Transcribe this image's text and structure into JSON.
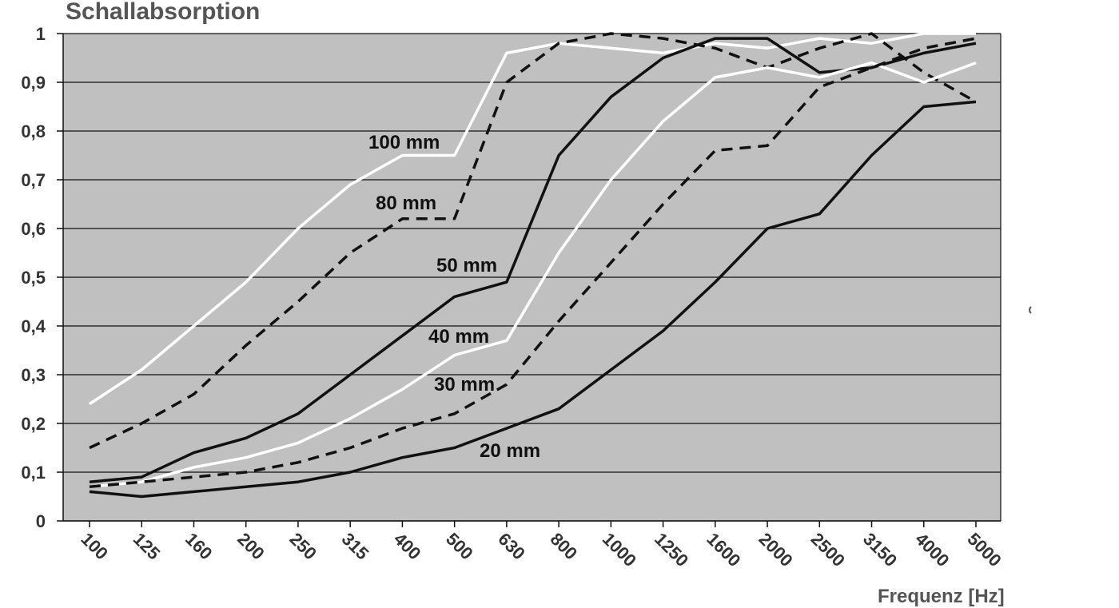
{
  "chart_data": {
    "type": "line",
    "title": "Schallabsorption",
    "xlabel": "Frequenz [Hz]",
    "ylabel": "",
    "ylim": [
      0,
      1
    ],
    "yticks": [
      "0",
      "0,1",
      "0,2",
      "0,3",
      "0,4",
      "0,5",
      "0,6",
      "0,7",
      "0,8",
      "0,9",
      "1"
    ],
    "categories": [
      "100",
      "125",
      "160",
      "200",
      "250",
      "315",
      "400",
      "500",
      "630",
      "800",
      "1000",
      "1250",
      "1600",
      "2000",
      "2500",
      "3150",
      "4000",
      "5000"
    ],
    "grid": true,
    "plot_background": "#c0c0c0",
    "series": [
      {
        "name": "100 mm",
        "color": "#ffffff",
        "dash": false,
        "values": [
          0.24,
          0.31,
          0.4,
          0.49,
          0.6,
          0.69,
          0.75,
          0.75,
          0.96,
          0.98,
          0.97,
          0.96,
          0.98,
          0.97,
          0.99,
          0.98,
          1.0,
          1.0
        ]
      },
      {
        "name": "80 mm",
        "color": "#111111",
        "dash": true,
        "values": [
          0.15,
          0.2,
          0.26,
          0.36,
          0.45,
          0.55,
          0.62,
          0.62,
          0.9,
          0.98,
          1.0,
          0.99,
          0.97,
          0.93,
          0.97,
          1.0,
          0.92,
          0.86
        ]
      },
      {
        "name": "50 mm",
        "color": "#111111",
        "dash": false,
        "values": [
          0.08,
          0.09,
          0.14,
          0.17,
          0.22,
          0.3,
          0.38,
          0.46,
          0.49,
          0.75,
          0.87,
          0.95,
          0.99,
          0.99,
          0.92,
          0.93,
          0.96,
          0.98
        ]
      },
      {
        "name": "40 mm",
        "color": "#ffffff",
        "dash": false,
        "values": [
          0.07,
          0.08,
          0.11,
          0.13,
          0.16,
          0.21,
          0.27,
          0.34,
          0.37,
          0.55,
          0.7,
          0.82,
          0.91,
          0.93,
          0.91,
          0.94,
          0.9,
          0.94
        ]
      },
      {
        "name": "30 mm",
        "color": "#111111",
        "dash": true,
        "values": [
          0.07,
          0.08,
          0.09,
          0.1,
          0.12,
          0.15,
          0.19,
          0.22,
          0.28,
          0.41,
          0.53,
          0.65,
          0.76,
          0.77,
          0.89,
          0.93,
          0.97,
          0.99
        ]
      },
      {
        "name": "20 mm",
        "color": "#111111",
        "dash": false,
        "values": [
          0.06,
          0.05,
          0.06,
          0.07,
          0.08,
          0.1,
          0.13,
          0.15,
          0.19,
          0.23,
          0.31,
          0.39,
          0.49,
          0.6,
          0.63,
          0.75,
          0.85,
          0.86
        ]
      }
    ]
  }
}
